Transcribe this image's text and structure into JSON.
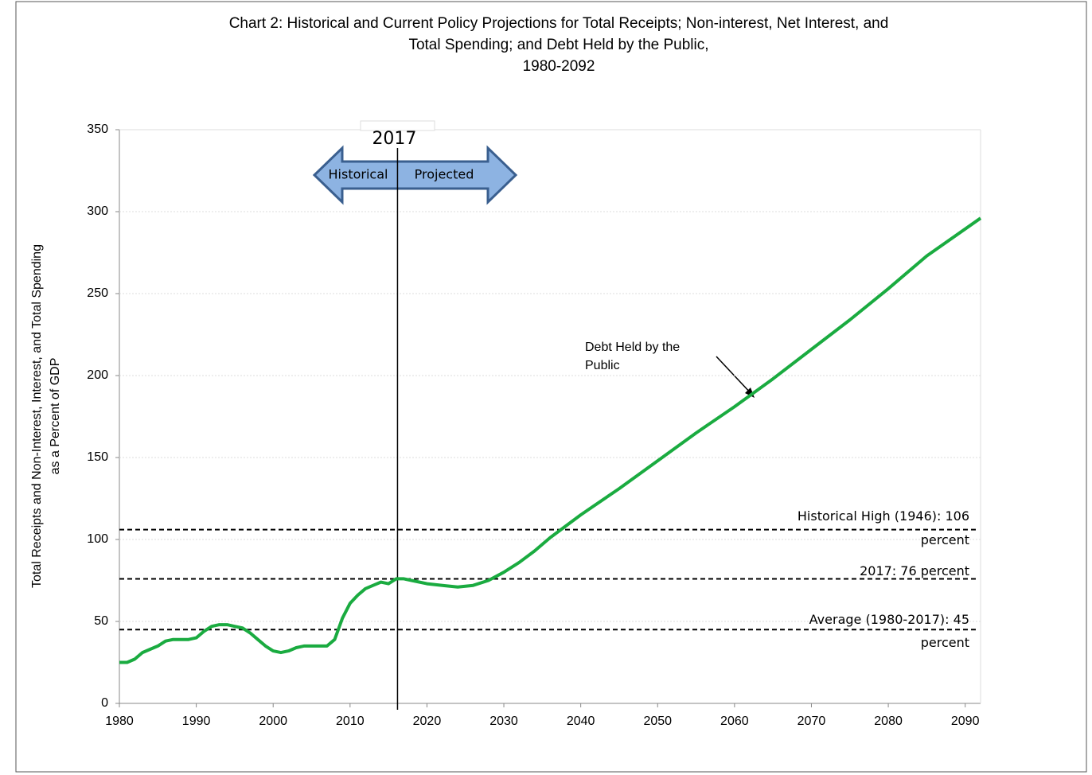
{
  "chart_data": {
    "type": "line",
    "title": [
      "Chart 2:  Historical and Current Policy Projections for Total Receipts; Non-interest, Net Interest, and",
      "Total Spending; and Debt Held by the Public,",
      "1980-2092"
    ],
    "y_label": [
      "Total Receipts and Non-Interest, Interest, and Total Spending",
      "as a Percent of GDP"
    ],
    "x": [
      1980,
      1981,
      1982,
      1983,
      1984,
      1985,
      1986,
      1987,
      1988,
      1989,
      1990,
      1991,
      1992,
      1993,
      1994,
      1995,
      1996,
      1997,
      1998,
      1999,
      2000,
      2001,
      2002,
      2003,
      2004,
      2005,
      2006,
      2007,
      2008,
      2009,
      2010,
      2011,
      2012,
      2013,
      2014,
      2015,
      2016,
      2017,
      2018,
      2020,
      2022,
      2024,
      2026,
      2028,
      2030,
      2032,
      2034,
      2036,
      2038,
      2040,
      2045,
      2050,
      2055,
      2060,
      2065,
      2070,
      2075,
      2080,
      2085,
      2092
    ],
    "values": [
      25,
      25,
      27,
      31,
      33,
      35,
      38,
      39,
      39,
      39,
      40,
      44,
      47,
      48,
      48,
      47,
      46,
      43,
      39,
      35,
      32,
      31,
      32,
      34,
      35,
      35,
      35,
      35,
      39,
      52,
      61,
      66,
      70,
      72,
      74,
      73,
      76,
      76,
      75,
      73,
      72,
      71,
      72,
      75,
      80,
      86,
      93,
      101,
      108,
      115,
      131,
      148,
      165,
      181,
      198,
      216,
      234,
      253,
      273,
      296
    ],
    "color": "#1aab40",
    "xlim": [
      1980,
      2092
    ],
    "xticks": [
      1980,
      1990,
      2000,
      2010,
      2020,
      2030,
      2040,
      2050,
      2060,
      2070,
      2080,
      2090
    ],
    "ylim": [
      0,
      350
    ],
    "yticks": [
      0,
      50,
      100,
      150,
      200,
      250,
      300,
      350
    ],
    "grid": true,
    "reference_lines": [
      {
        "value": 106,
        "label": [
          "Historical High (1946): 106",
          "percent"
        ]
      },
      {
        "value": 76,
        "label": [
          "2017: 76 percent"
        ]
      },
      {
        "value": 45,
        "label": [
          "Average (1980-2017): 45",
          "percent"
        ]
      }
    ],
    "divider": {
      "x": 2017,
      "label": "2017",
      "left": "Historical",
      "right": "Projected"
    },
    "annotation": [
      "Debt Held by the",
      "Public"
    ]
  }
}
